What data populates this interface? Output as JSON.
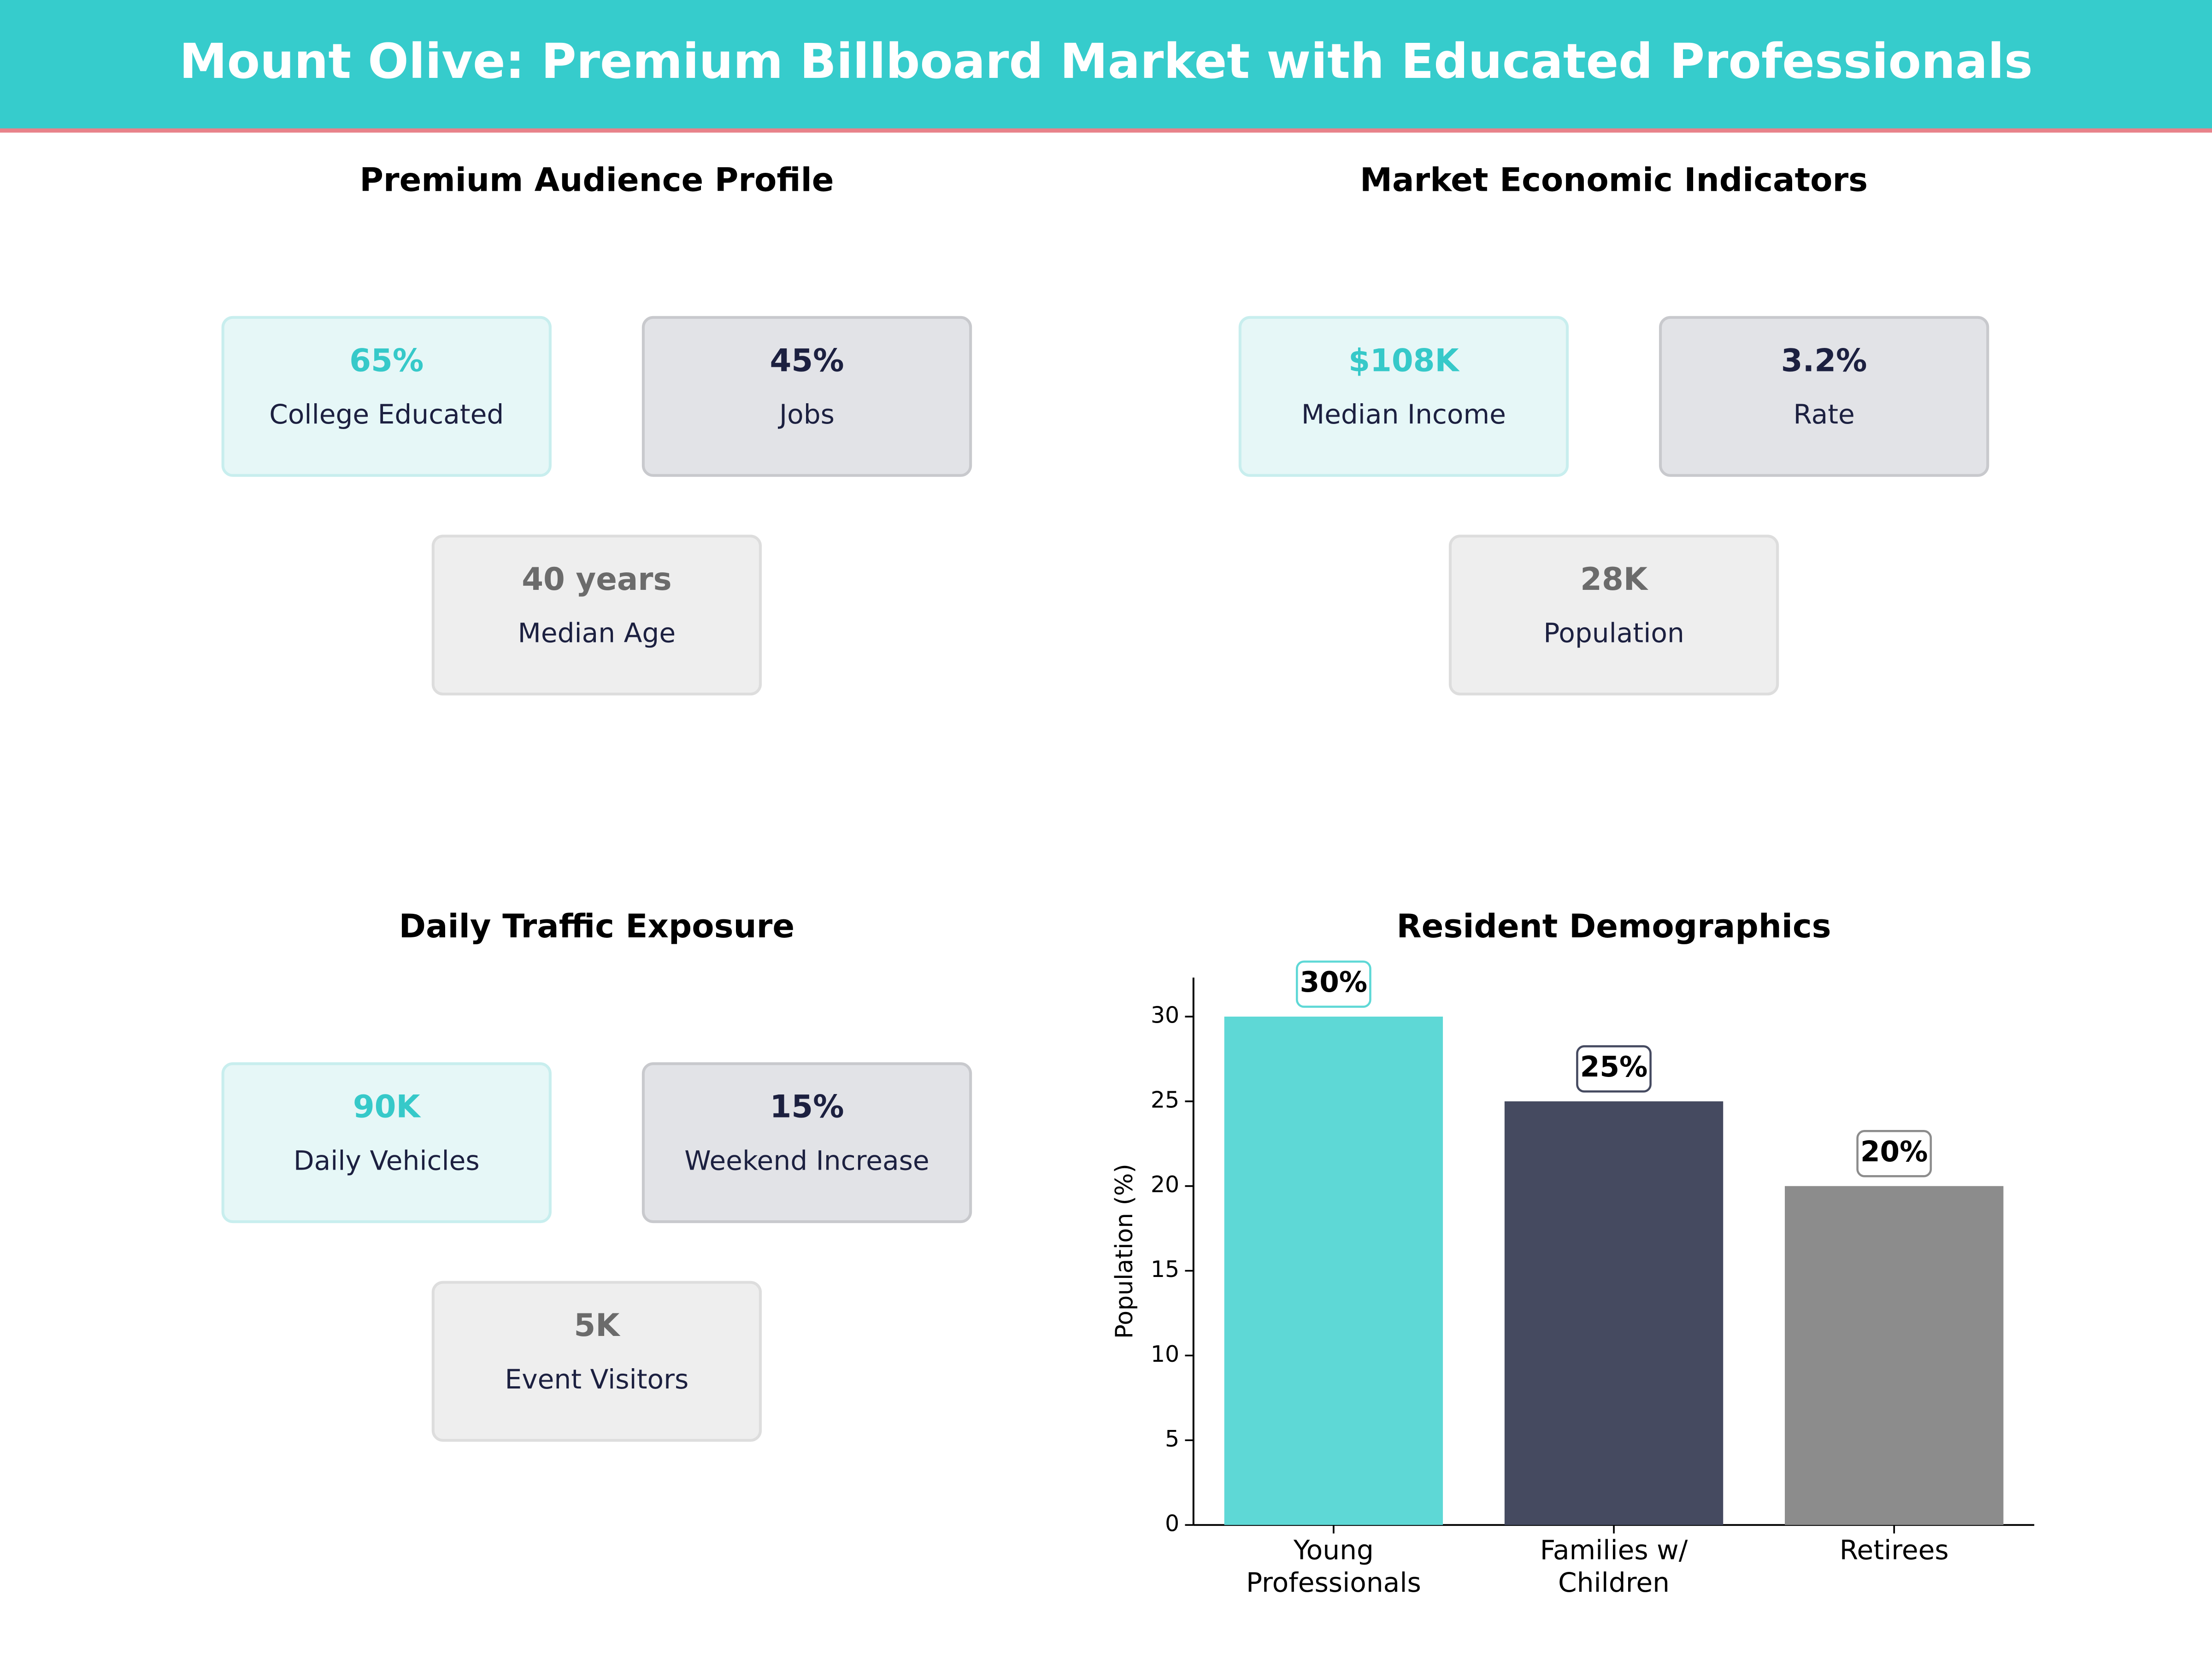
{
  "header": {
    "title": "Mount Olive: Premium Billboard Market with Educated Professionals"
  },
  "panels": [
    {
      "title": "Premium Audience Profile",
      "cards": [
        {
          "value": "65%",
          "label": "College Educated"
        },
        {
          "value": "45%",
          "label": "Jobs"
        },
        {
          "value": "40 years",
          "label": "Median Age"
        }
      ]
    },
    {
      "title": "Market Economic Indicators",
      "cards": [
        {
          "value": "$108K",
          "label": "Median Income"
        },
        {
          "value": "3.2%",
          "label": "Rate"
        },
        {
          "value": "28K",
          "label": "Population"
        }
      ]
    },
    {
      "title": "Daily Traffic Exposure",
      "cards": [
        {
          "value": "90K",
          "label": "Daily Vehicles"
        },
        {
          "value": "15%",
          "label": "Weekend Increase"
        },
        {
          "value": "5K",
          "label": "Event Visitors"
        }
      ]
    }
  ],
  "chart_data": {
    "type": "bar",
    "title": "Resident Demographics",
    "y_label": "Population (%)",
    "categories": [
      "Young Professionals",
      "Families w/ Children",
      "Retirees"
    ],
    "values": [
      30,
      25,
      20
    ],
    "value_labels": [
      "30%",
      "25%",
      "20%"
    ],
    "colors": [
      "#5ed8d6",
      "#454a60",
      "#8c8c8c"
    ],
    "ylim": [
      0,
      32.3
    ],
    "yticks": [
      0,
      5,
      10,
      15,
      20,
      25,
      30
    ]
  }
}
